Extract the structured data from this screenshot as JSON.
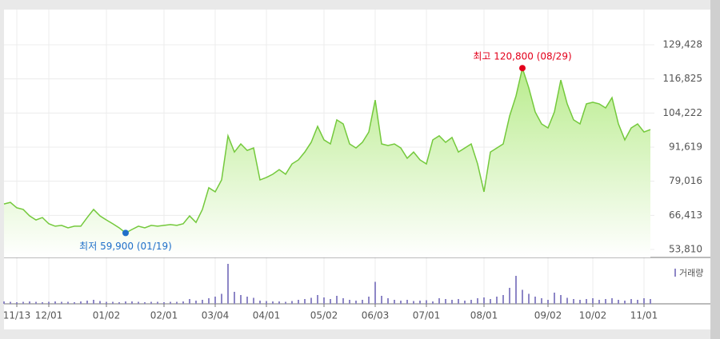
{
  "chart_data": {
    "type": "area",
    "categories": [
      null,
      null,
      "11/13",
      null,
      null,
      null,
      null,
      "12/01",
      null,
      null,
      null,
      null,
      null,
      null,
      null,
      null,
      "01/02",
      null,
      null,
      null,
      null,
      null,
      null,
      null,
      null,
      "02/01",
      null,
      null,
      null,
      null,
      null,
      null,
      null,
      "03/04",
      null,
      null,
      null,
      null,
      null,
      null,
      null,
      "04/01",
      null,
      null,
      null,
      null,
      null,
      null,
      null,
      null,
      "05/02",
      null,
      null,
      null,
      null,
      null,
      null,
      null,
      "06/03",
      null,
      null,
      null,
      null,
      null,
      null,
      null,
      "07/01",
      null,
      null,
      null,
      null,
      null,
      null,
      null,
      null,
      "08/01",
      null,
      null,
      null,
      null,
      null,
      null,
      null,
      null,
      null,
      "09/02",
      null,
      null,
      null,
      null,
      null,
      null,
      "10/02",
      null,
      null,
      null,
      null,
      null,
      null,
      null,
      "11/01",
      null
    ],
    "series": [
      {
        "color": "#74c93c",
        "values": [
          70600,
          71200,
          69200,
          68600,
          66200,
          64700,
          65600,
          63300,
          62400,
          62700,
          61800,
          62400,
          62400,
          65600,
          68600,
          66200,
          64700,
          63300,
          61800,
          59900,
          61200,
          62400,
          61800,
          62700,
          62400,
          62700,
          63000,
          62700,
          63300,
          66200,
          63800,
          68600,
          76600,
          75100,
          79500,
          95800,
          89800,
          92800,
          90400,
          91300,
          79500,
          80400,
          81600,
          83300,
          81600,
          85400,
          86900,
          89800,
          93400,
          99300,
          94300,
          92800,
          101700,
          100200,
          92800,
          91300,
          93400,
          97200,
          109000,
          92800,
          92200,
          92800,
          91300,
          87500,
          89800,
          86900,
          85400,
          94300,
          95800,
          93400,
          95200,
          89800,
          91300,
          92800,
          85400,
          75100,
          89800,
          91300,
          92800,
          103100,
          110500,
          120800,
          113500,
          104600,
          100200,
          98700,
          104600,
          116400,
          107600,
          101700,
          100200,
          107600,
          108200,
          107600,
          106100,
          109900,
          100200,
          94300,
          98700,
          100200,
          97200,
          98100
        ]
      }
    ],
    "ylim": [
      50856,
      142424
    ],
    "yticks": [
      {
        "value": 53810,
        "label": "53,810"
      },
      {
        "value": 66413,
        "label": "66,413"
      },
      {
        "value": 79016,
        "label": "79,016"
      },
      {
        "value": 91619,
        "label": "91,619"
      },
      {
        "value": 104222,
        "label": "104,222"
      },
      {
        "value": 116825,
        "label": "116,825"
      },
      {
        "value": 129428,
        "label": "129,428"
      }
    ],
    "grid": true,
    "high": {
      "text": "최고 120,800 (08/29)",
      "color": "#e3001b"
    },
    "low": {
      "text": "최저 59,900 (01/19)",
      "color": "#1f6fc9"
    },
    "volume": {
      "name": "거래량",
      "color": "#8d86c6",
      "ylim": [
        0,
        100
      ],
      "values": [
        6,
        5,
        4,
        5,
        6,
        5,
        4,
        5,
        6,
        5,
        5,
        4,
        6,
        8,
        10,
        7,
        5,
        5,
        4,
        6,
        6,
        5,
        4,
        5,
        5,
        4,
        5,
        5,
        6,
        12,
        8,
        10,
        14,
        18,
        25,
        100,
        30,
        22,
        18,
        15,
        8,
        7,
        6,
        6,
        5,
        7,
        10,
        12,
        15,
        22,
        16,
        12,
        20,
        14,
        10,
        8,
        10,
        18,
        55,
        20,
        14,
        10,
        8,
        10,
        7,
        8,
        9,
        6,
        14,
        12,
        10,
        12,
        8,
        10,
        14,
        16,
        12,
        18,
        22,
        40,
        70,
        35,
        25,
        18,
        14,
        10,
        28,
        22,
        15,
        12,
        10,
        12,
        14,
        10,
        12,
        14,
        10,
        8,
        12,
        10,
        14,
        12
      ]
    }
  }
}
